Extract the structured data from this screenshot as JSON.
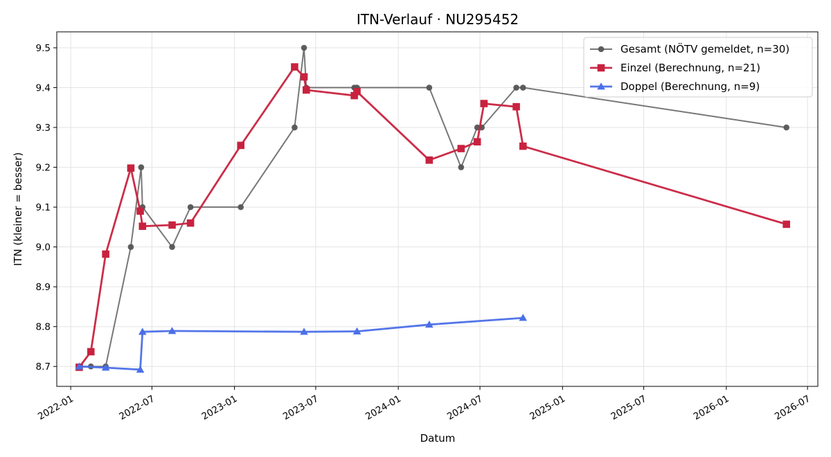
{
  "chart_data": {
    "type": "line",
    "title": "ITN-Verlauf · NU295452",
    "xlabel": "Datum",
    "ylabel": "ITN  (kleiner = besser)",
    "x_axis_type": "date",
    "xlim": [
      "2021-12-01",
      "2026-07-24"
    ],
    "ylim": [
      8.65,
      9.54
    ],
    "x_ticks": [
      "2022-01-01",
      "2022-07-01",
      "2023-01-01",
      "2023-07-01",
      "2024-01-01",
      "2024-07-01",
      "2025-01-01",
      "2025-07-01",
      "2026-01-01",
      "2026-07-01"
    ],
    "x_tick_labels": [
      "2022-01",
      "2022-07",
      "2023-01",
      "2023-07",
      "2024-01",
      "2024-07",
      "2025-01",
      "2025-07",
      "2026-01",
      "2026-07"
    ],
    "y_ticks": [
      8.7,
      8.8,
      8.9,
      9.0,
      9.1,
      9.2,
      9.3,
      9.4,
      9.5
    ],
    "y_tick_labels": [
      "8.7",
      "8.8",
      "8.9",
      "9.0",
      "9.1",
      "9.2",
      "9.3",
      "9.4",
      "9.5"
    ],
    "grid": true,
    "legend_position": "top-right",
    "series": [
      {
        "name": "Gesamt (NÖTV gemeldet, n=30)",
        "marker": "circle",
        "color": "#555555",
        "points": [
          {
            "x": "2022-01-20",
            "y": 8.7
          },
          {
            "x": "2022-02-15",
            "y": 8.7
          },
          {
            "x": "2022-03-20",
            "y": 8.7
          },
          {
            "x": "2022-05-15",
            "y": 9.0
          },
          {
            "x": "2022-06-07",
            "y": 9.2
          },
          {
            "x": "2022-06-10",
            "y": 9.1
          },
          {
            "x": "2022-08-15",
            "y": 9.0
          },
          {
            "x": "2022-09-25",
            "y": 9.1
          },
          {
            "x": "2023-01-15",
            "y": 9.1
          },
          {
            "x": "2023-05-15",
            "y": 9.3
          },
          {
            "x": "2023-06-05",
            "y": 9.5
          },
          {
            "x": "2023-06-10",
            "y": 9.4
          },
          {
            "x": "2023-09-25",
            "y": 9.4
          },
          {
            "x": "2023-10-01",
            "y": 9.4
          },
          {
            "x": "2024-03-10",
            "y": 9.4
          },
          {
            "x": "2024-05-20",
            "y": 9.2
          },
          {
            "x": "2024-06-25",
            "y": 9.3
          },
          {
            "x": "2024-07-05",
            "y": 9.3
          },
          {
            "x": "2024-09-20",
            "y": 9.4
          },
          {
            "x": "2024-10-05",
            "y": 9.4
          },
          {
            "x": "2026-05-15",
            "y": 9.3
          }
        ]
      },
      {
        "name": "Einzel (Berechnung, n=21)",
        "marker": "square",
        "color": "#c8223f",
        "points": [
          {
            "x": "2022-01-20",
            "y": 8.698
          },
          {
            "x": "2022-02-15",
            "y": 8.737
          },
          {
            "x": "2022-03-20",
            "y": 8.982
          },
          {
            "x": "2022-05-15",
            "y": 9.198
          },
          {
            "x": "2022-06-05",
            "y": 9.09
          },
          {
            "x": "2022-06-10",
            "y": 9.052
          },
          {
            "x": "2022-08-15",
            "y": 9.055
          },
          {
            "x": "2022-09-25",
            "y": 9.06
          },
          {
            "x": "2023-01-15",
            "y": 9.255
          },
          {
            "x": "2023-05-15",
            "y": 9.452
          },
          {
            "x": "2023-06-05",
            "y": 9.427
          },
          {
            "x": "2023-06-10",
            "y": 9.394
          },
          {
            "x": "2023-09-25",
            "y": 9.38
          },
          {
            "x": "2023-10-01",
            "y": 9.39
          },
          {
            "x": "2024-03-10",
            "y": 9.218
          },
          {
            "x": "2024-05-20",
            "y": 9.247
          },
          {
            "x": "2024-06-25",
            "y": 9.264
          },
          {
            "x": "2024-07-10",
            "y": 9.36
          },
          {
            "x": "2024-09-20",
            "y": 9.352
          },
          {
            "x": "2024-10-05",
            "y": 9.253
          },
          {
            "x": "2026-05-15",
            "y": 9.057
          }
        ]
      },
      {
        "name": "Doppel (Berechnung, n=9)",
        "marker": "triangle",
        "color": "#4b6fe8",
        "points": [
          {
            "x": "2022-01-20",
            "y": 8.7
          },
          {
            "x": "2022-03-20",
            "y": 8.697
          },
          {
            "x": "2022-06-05",
            "y": 8.692
          },
          {
            "x": "2022-06-10",
            "y": 8.787
          },
          {
            "x": "2022-08-15",
            "y": 8.789
          },
          {
            "x": "2023-06-05",
            "y": 8.787
          },
          {
            "x": "2023-10-01",
            "y": 8.788
          },
          {
            "x": "2024-03-10",
            "y": 8.805
          },
          {
            "x": "2024-10-05",
            "y": 8.822
          }
        ]
      }
    ]
  }
}
